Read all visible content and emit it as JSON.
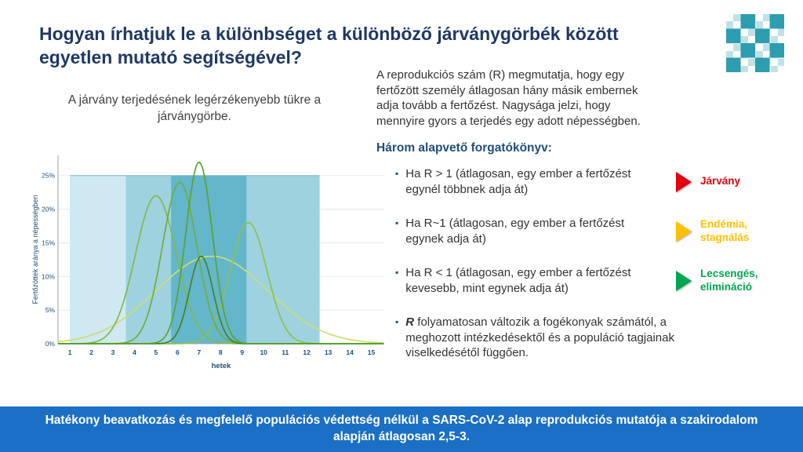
{
  "slide": {
    "title": "Hogyan írhatjuk le a különbséget a különböző járványgörbék között egyetlen mutató segítségével?",
    "left": {
      "caption": "A járvány terjedésének legérzékenyebb tükre a járványgörbe."
    },
    "right": {
      "intro": "A reprodukciós szám (R) megmutatja, hogy egy fertőzött személy átlagosan hány másik embernek adja tovább a fertőzést. Nagysága jelzi, hogy mennyire gyors a terjedés egy adott népességben.",
      "scenarios_heading": "Három alapvető forgatókönyv:",
      "bullets": [
        {
          "text": "Ha R > 1 (átlagosan, egy ember a fertőzést egynél többnek adja át)",
          "indicator_label": "Járvány",
          "indicator_color": "#E3000F"
        },
        {
          "text": "Ha R~1 (átlagosan, egy ember a fertőzést egynek adja át)",
          "indicator_label": "Endémia,\nstagnálás",
          "indicator_color": "#FFC000"
        },
        {
          "text": "Ha R < 1 (átlagosan, egy ember a fertőzést kevesebb, mint egynek adja át)",
          "indicator_label": "Lecsengés,\nelimináció",
          "indicator_color": "#00A651"
        },
        {
          "prefix": "R",
          "text": " folyamatosan változik a fogékonyak számától, a meghozott intézkedésektől és a populáció tagjainak viselkedésétől függően."
        }
      ]
    },
    "footer": "Hatékony beavatkozás és megfelelő populációs védettség nélkül a SARS-CoV-2 alap reprodukciós mutatója a szakirodalom alapján átlagosan 2,5-3."
  },
  "chart_data": {
    "type": "line",
    "title": "",
    "xlabel": "hetek",
    "ylabel": "Fertőzöttek aránya a népességben",
    "xlim": [
      0.45,
      15.6
    ],
    "ylim": [
      0,
      28
    ],
    "x_ticks": [
      1,
      2,
      3,
      4,
      5,
      6,
      7,
      8,
      9,
      10,
      11,
      12,
      13,
      14,
      15
    ],
    "y_ticks": [
      {
        "value": 0,
        "label": "0%"
      },
      {
        "value": 5,
        "label": "5%"
      },
      {
        "value": 10,
        "label": "10%"
      },
      {
        "value": 15,
        "label": "15%"
      },
      {
        "value": 20,
        "label": "20%"
      },
      {
        "value": 25,
        "label": "25%"
      }
    ],
    "bands": [
      {
        "x0": 1.0,
        "x1": 12.6,
        "top": 25,
        "color": "#cfe8f1"
      },
      {
        "x0": 3.6,
        "x1": 12.6,
        "top": 25,
        "color": "#9ed2df"
      },
      {
        "x0": 5.7,
        "x1": 9.2,
        "top": 25,
        "color": "#64b6ca"
      }
    ],
    "curves": [
      {
        "name": "wide-flat",
        "mu": 7.6,
        "sigma": 2.6,
        "peak": 13,
        "color": "#cddc74"
      },
      {
        "name": "late-medium",
        "mu": 9.3,
        "sigma": 0.85,
        "peak": 18,
        "color": "#8cc152"
      },
      {
        "name": "peak-week5",
        "mu": 5.0,
        "sigma": 0.95,
        "peak": 22,
        "color": "#82b94e"
      },
      {
        "name": "peak-week6",
        "mu": 6.1,
        "sigma": 0.8,
        "peak": 24,
        "color": "#6fae3f"
      },
      {
        "name": "small-dark",
        "mu": 7.1,
        "sigma": 0.55,
        "peak": 13,
        "color": "#45822a"
      },
      {
        "name": "tallest",
        "mu": 7.0,
        "sigma": 0.62,
        "peak": 27,
        "color": "#5aa32f"
      }
    ]
  }
}
